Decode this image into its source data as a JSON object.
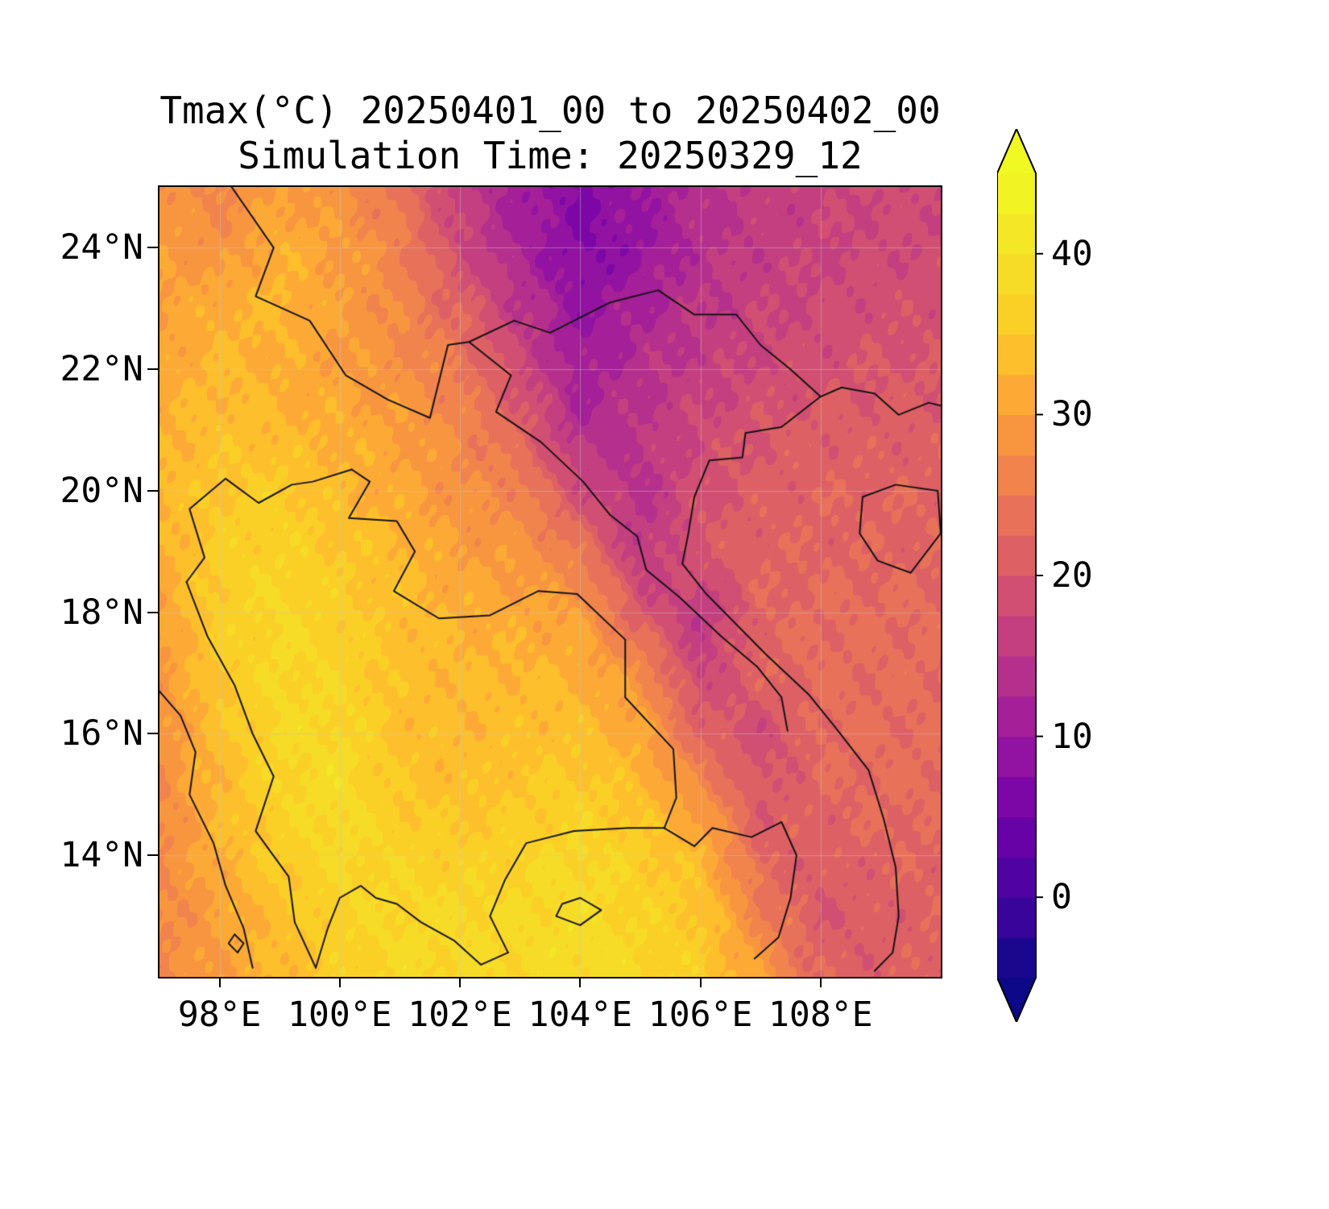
{
  "title": {
    "line1": "Tmax(°C) 20250401_00 to 20250402_00",
    "line2": "Simulation Time: 20250329_12"
  },
  "axes": {
    "lon_range": [
      97,
      110
    ],
    "lat_range": [
      12,
      25
    ],
    "x_ticks": [
      {
        "value": 98,
        "label": "98°E"
      },
      {
        "value": 100,
        "label": "100°E"
      },
      {
        "value": 102,
        "label": "102°E"
      },
      {
        "value": 104,
        "label": "104°E"
      },
      {
        "value": 106,
        "label": "106°E"
      },
      {
        "value": 108,
        "label": "108°E"
      }
    ],
    "y_ticks": [
      {
        "value": 14,
        "label": "14°N"
      },
      {
        "value": 16,
        "label": "16°N"
      },
      {
        "value": 18,
        "label": "18°N"
      },
      {
        "value": 20,
        "label": "20°N"
      },
      {
        "value": 22,
        "label": "22°N"
      },
      {
        "value": 24,
        "label": "24°N"
      }
    ]
  },
  "colorbar": {
    "min": -5,
    "max": 45,
    "step": 2.5,
    "extend": "both",
    "ticks": [
      {
        "value": 0,
        "label": "0"
      },
      {
        "value": 10,
        "label": "10"
      },
      {
        "value": 20,
        "label": "20"
      },
      {
        "value": 30,
        "label": "30"
      },
      {
        "value": 40,
        "label": "40"
      }
    ]
  },
  "colormap": {
    "name": "plasma",
    "stops": [
      [
        13,
        8,
        135
      ],
      [
        70,
        3,
        159
      ],
      [
        114,
        1,
        168
      ],
      [
        156,
        23,
        158
      ],
      [
        189,
        55,
        134
      ],
      [
        216,
        87,
        107
      ],
      [
        237,
        121,
        83
      ],
      [
        251,
        159,
        58
      ],
      [
        253,
        202,
        38
      ],
      [
        244,
        225,
        39
      ],
      [
        240,
        249,
        33
      ]
    ]
  },
  "chart_data": {
    "type": "heatmap",
    "variable": "Tmax",
    "units": "°C",
    "title": "Tmax(°C) 20250401_00 to 20250402_00",
    "subtitle": "Simulation Time: 20250329_12",
    "colormap": "plasma",
    "levels": {
      "min": -5,
      "max": 45,
      "step": 2.5
    },
    "x_tick_labels": [
      "98°E",
      "100°E",
      "102°E",
      "104°E",
      "106°E",
      "108°E"
    ],
    "y_tick_labels": [
      "14°N",
      "16°N",
      "18°N",
      "20°N",
      "22°N",
      "24°N"
    ],
    "lons": [
      97,
      98,
      99,
      100,
      101,
      102,
      103,
      104,
      105,
      106,
      107,
      108,
      109,
      110
    ],
    "lats": [
      25,
      24,
      23,
      22,
      21,
      20,
      19,
      18,
      17,
      16,
      15,
      14,
      13,
      12
    ],
    "values": [
      [
        28,
        27,
        30,
        28,
        24,
        16,
        11,
        7,
        10,
        14,
        16,
        17,
        18,
        18
      ],
      [
        30,
        28,
        32,
        30,
        26,
        18,
        12,
        7,
        9,
        14,
        16,
        17,
        18,
        18
      ],
      [
        30,
        32,
        33,
        30,
        27,
        22,
        15,
        9,
        12,
        15,
        17,
        18,
        19,
        19
      ],
      [
        31,
        33,
        32,
        30,
        28,
        25,
        18,
        11,
        14,
        16,
        18,
        19,
        20,
        20
      ],
      [
        32,
        34,
        33,
        32,
        30,
        27,
        22,
        13,
        15,
        18,
        20,
        21,
        21,
        21
      ],
      [
        33,
        35,
        36,
        33,
        31,
        28,
        26,
        18,
        14,
        19,
        21,
        22,
        22,
        22
      ],
      [
        32,
        36,
        37,
        35,
        33,
        30,
        29,
        25,
        15,
        20,
        22,
        22,
        22,
        22
      ],
      [
        30,
        36,
        38,
        36,
        34,
        32,
        31,
        30,
        20,
        15,
        22,
        23,
        23,
        23
      ],
      [
        29,
        35,
        38,
        37,
        34,
        33,
        33,
        32,
        28,
        17,
        22,
        23,
        23,
        23
      ],
      [
        28,
        34,
        38,
        38,
        34,
        33,
        34,
        34,
        31,
        22,
        18,
        23,
        23,
        23
      ],
      [
        27,
        33,
        37,
        39,
        35,
        34,
        35,
        36,
        34,
        28,
        20,
        22,
        23,
        23
      ],
      [
        27,
        32,
        36,
        38,
        37,
        36,
        37,
        38,
        36,
        33,
        22,
        21,
        22,
        22
      ],
      [
        27,
        30,
        34,
        37,
        38,
        38,
        38,
        39,
        37,
        35,
        26,
        20,
        21,
        22
      ],
      [
        27,
        30,
        33,
        36,
        38,
        38,
        38,
        39,
        38,
        36,
        30,
        22,
        21,
        22
      ]
    ]
  },
  "map_overlays": {
    "borders": [
      {
        "name": "china-border",
        "points": [
          [
            98.2,
            25.0
          ],
          [
            98.9,
            24.0
          ],
          [
            98.6,
            23.2
          ],
          [
            99.5,
            22.8
          ],
          [
            100.1,
            21.9
          ],
          [
            100.8,
            21.5
          ],
          [
            101.5,
            21.2
          ],
          [
            101.8,
            22.4
          ],
          [
            102.15,
            22.45
          ],
          [
            102.9,
            22.8
          ],
          [
            103.5,
            22.6
          ],
          [
            104.5,
            23.1
          ],
          [
            105.3,
            23.3
          ],
          [
            105.9,
            22.9
          ],
          [
            106.6,
            22.9
          ],
          [
            107.0,
            22.4
          ],
          [
            107.5,
            22.0
          ],
          [
            108.0,
            21.55
          ]
        ]
      },
      {
        "name": "thai-north-border",
        "points": [
          [
            97.45,
            18.5
          ],
          [
            97.75,
            18.9
          ],
          [
            97.5,
            19.7
          ],
          [
            98.1,
            20.2
          ],
          [
            98.65,
            19.8
          ],
          [
            99.2,
            20.1
          ],
          [
            99.55,
            20.15
          ],
          [
            100.2,
            20.35
          ]
        ]
      },
      {
        "name": "thai-west-border",
        "points": [
          [
            97.45,
            18.5
          ],
          [
            97.8,
            17.6
          ],
          [
            98.25,
            16.8
          ],
          [
            98.55,
            16.0
          ],
          [
            98.9,
            15.3
          ],
          [
            98.6,
            14.4
          ],
          [
            99.15,
            13.65
          ],
          [
            99.25,
            12.9
          ],
          [
            99.6,
            12.15
          ]
        ]
      },
      {
        "name": "thai-lao-border",
        "points": [
          [
            100.2,
            20.35
          ],
          [
            100.5,
            20.15
          ],
          [
            100.15,
            19.55
          ],
          [
            100.95,
            19.5
          ],
          [
            101.25,
            19.0
          ],
          [
            100.9,
            18.35
          ],
          [
            101.65,
            17.9
          ],
          [
            102.5,
            17.95
          ],
          [
            103.3,
            18.35
          ],
          [
            103.95,
            18.3
          ],
          [
            104.75,
            17.55
          ],
          [
            104.75,
            16.6
          ],
          [
            105.55,
            15.75
          ],
          [
            105.6,
            14.95
          ],
          [
            105.4,
            14.45
          ]
        ]
      },
      {
        "name": "lao-vietnam-border",
        "points": [
          [
            102.15,
            22.45
          ],
          [
            102.85,
            21.9
          ],
          [
            102.6,
            21.3
          ],
          [
            103.35,
            20.8
          ],
          [
            104.05,
            20.15
          ],
          [
            104.5,
            19.6
          ],
          [
            104.95,
            19.25
          ],
          [
            105.1,
            18.7
          ],
          [
            105.65,
            18.25
          ],
          [
            106.35,
            17.6
          ],
          [
            106.95,
            17.1
          ],
          [
            107.35,
            16.6
          ],
          [
            107.45,
            16.05
          ]
        ]
      },
      {
        "name": "cambodia-border",
        "points": [
          [
            102.8,
            12.4
          ],
          [
            102.5,
            13.0
          ],
          [
            102.75,
            13.6
          ],
          [
            103.1,
            14.2
          ],
          [
            103.9,
            14.4
          ],
          [
            104.8,
            14.45
          ],
          [
            105.4,
            14.45
          ],
          [
            105.9,
            14.15
          ],
          [
            106.2,
            14.45
          ],
          [
            106.85,
            14.3
          ],
          [
            107.35,
            14.55
          ],
          [
            107.6,
            14.0
          ],
          [
            107.5,
            13.3
          ],
          [
            107.3,
            12.65
          ],
          [
            106.9,
            12.3
          ]
        ]
      },
      {
        "name": "vietnam-coast",
        "points": [
          [
            108.0,
            21.55
          ],
          [
            107.35,
            21.05
          ],
          [
            106.75,
            20.95
          ],
          [
            106.7,
            20.55
          ],
          [
            106.15,
            20.5
          ],
          [
            105.9,
            19.9
          ],
          [
            105.8,
            19.3
          ],
          [
            105.7,
            18.8
          ],
          [
            106.1,
            18.3
          ],
          [
            106.5,
            17.9
          ],
          [
            107.1,
            17.3
          ],
          [
            107.8,
            16.65
          ],
          [
            108.25,
            16.1
          ],
          [
            108.8,
            15.4
          ],
          [
            109.05,
            14.6
          ],
          [
            109.25,
            13.8
          ],
          [
            109.3,
            13.0
          ],
          [
            109.2,
            12.4
          ],
          [
            108.9,
            12.1
          ]
        ]
      },
      {
        "name": "gulf-tonkin-coast",
        "points": [
          [
            108.0,
            21.55
          ],
          [
            108.35,
            21.7
          ],
          [
            108.9,
            21.6
          ],
          [
            109.3,
            21.25
          ],
          [
            109.8,
            21.45
          ],
          [
            110.0,
            21.4
          ]
        ]
      },
      {
        "name": "hainan-island",
        "points": [
          [
            108.65,
            19.3
          ],
          [
            108.7,
            19.9
          ],
          [
            109.25,
            20.1
          ],
          [
            109.95,
            20.0
          ],
          [
            110.0,
            19.3
          ],
          [
            109.5,
            18.65
          ],
          [
            108.95,
            18.85
          ],
          [
            108.65,
            19.3
          ]
        ]
      },
      {
        "name": "myanmar-coast",
        "points": [
          [
            97.0,
            16.7
          ],
          [
            97.35,
            16.3
          ],
          [
            97.6,
            15.7
          ],
          [
            97.5,
            15.0
          ],
          [
            97.9,
            14.2
          ],
          [
            98.1,
            13.5
          ],
          [
            98.4,
            12.8
          ],
          [
            98.55,
            12.15
          ]
        ]
      },
      {
        "name": "thai-gulf-coast",
        "points": [
          [
            99.6,
            12.15
          ],
          [
            99.8,
            12.8
          ],
          [
            100.0,
            13.3
          ],
          [
            100.35,
            13.5
          ],
          [
            100.6,
            13.3
          ],
          [
            100.95,
            13.2
          ],
          [
            101.35,
            12.9
          ],
          [
            101.9,
            12.6
          ],
          [
            102.35,
            12.2
          ],
          [
            102.8,
            12.4
          ]
        ]
      },
      {
        "name": "tonle-sap-lake",
        "points": [
          [
            103.6,
            13.0
          ],
          [
            104.0,
            12.85
          ],
          [
            104.35,
            13.1
          ],
          [
            104.0,
            13.3
          ],
          [
            103.7,
            13.2
          ],
          [
            103.6,
            13.0
          ]
        ]
      },
      {
        "name": "small-island",
        "points": [
          [
            98.25,
            12.7
          ],
          [
            98.4,
            12.55
          ],
          [
            98.3,
            12.4
          ],
          [
            98.15,
            12.55
          ],
          [
            98.25,
            12.7
          ]
        ]
      }
    ]
  }
}
